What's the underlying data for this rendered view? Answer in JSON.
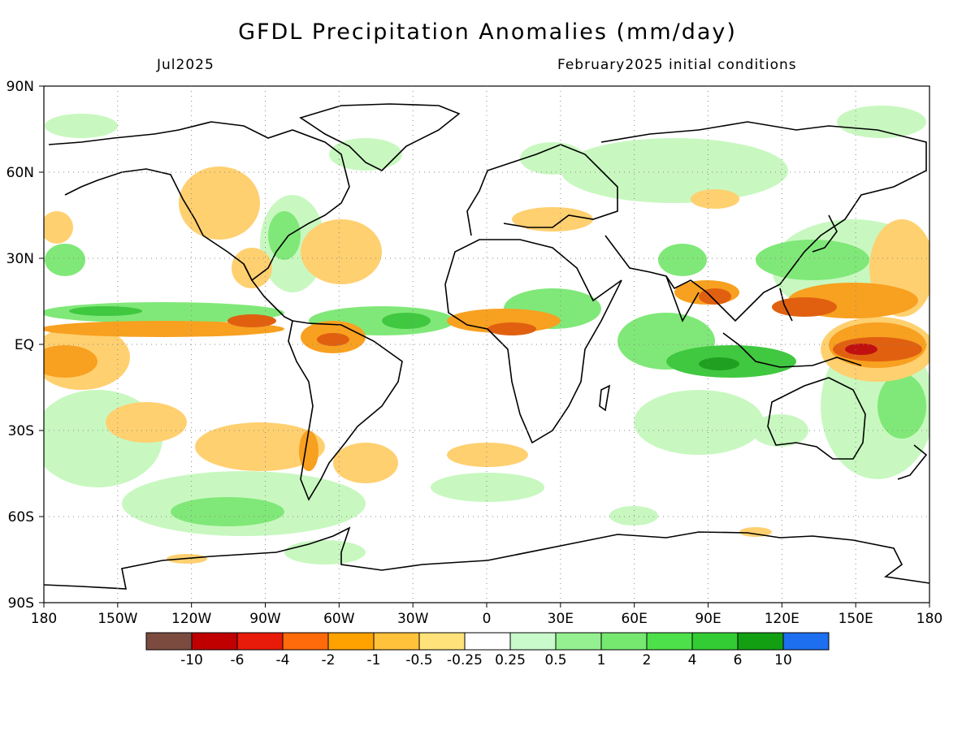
{
  "header": {
    "title": "GFDL Precipitation Anomalies (mm/day)",
    "valid_month": "Jul2025",
    "init_label": "February2025 initial conditions"
  },
  "map": {
    "lon_range": [
      -180,
      180
    ],
    "lat_range": [
      -90,
      90
    ],
    "grid": "dotted",
    "lon_ticks": [
      {
        "value": -180,
        "label": "180"
      },
      {
        "value": -150,
        "label": "150W"
      },
      {
        "value": -120,
        "label": "120W"
      },
      {
        "value": -90,
        "label": "90W"
      },
      {
        "value": -60,
        "label": "60W"
      },
      {
        "value": -30,
        "label": "30W"
      },
      {
        "value": 0,
        "label": "0"
      },
      {
        "value": 30,
        "label": "30E"
      },
      {
        "value": 60,
        "label": "60E"
      },
      {
        "value": 90,
        "label": "90E"
      },
      {
        "value": 120,
        "label": "120E"
      },
      {
        "value": 150,
        "label": "150E"
      },
      {
        "value": 180,
        "label": "180"
      }
    ],
    "lat_ticks": [
      {
        "value": 90,
        "label": "90N"
      },
      {
        "value": 60,
        "label": "60N"
      },
      {
        "value": 30,
        "label": "30N"
      },
      {
        "value": 0,
        "label": "EQ"
      },
      {
        "value": -30,
        "label": "30S"
      },
      {
        "value": -60,
        "label": "60S"
      },
      {
        "value": -90,
        "label": "90S"
      }
    ],
    "colors": {
      "dry_strong": "#e06010",
      "dry_mid": "#f8a020",
      "dry_weak": "#ffd070",
      "wet_weak": "#c8f8c0",
      "wet_mid": "#80e878",
      "wet_strong": "#40c840",
      "wet_very": "#20a020",
      "dry_extreme": "#c01010",
      "coast": "#000000"
    }
  },
  "colorbar": {
    "colors": [
      "#7b4b3f",
      "#c00000",
      "#e81a0a",
      "#ff6a0a",
      "#ffa200",
      "#ffc23a",
      "#ffe27a",
      "#ffffff",
      "#c8facc",
      "#94f090",
      "#76e870",
      "#4ee04a",
      "#34cc34",
      "#12a012",
      "#1e6ef0"
    ],
    "labels": [
      "-10",
      "-6",
      "-4",
      "-2",
      "-1",
      "-0.5",
      "-0.25",
      "0.25",
      "0.5",
      "1",
      "2",
      "4",
      "6",
      "10"
    ]
  }
}
